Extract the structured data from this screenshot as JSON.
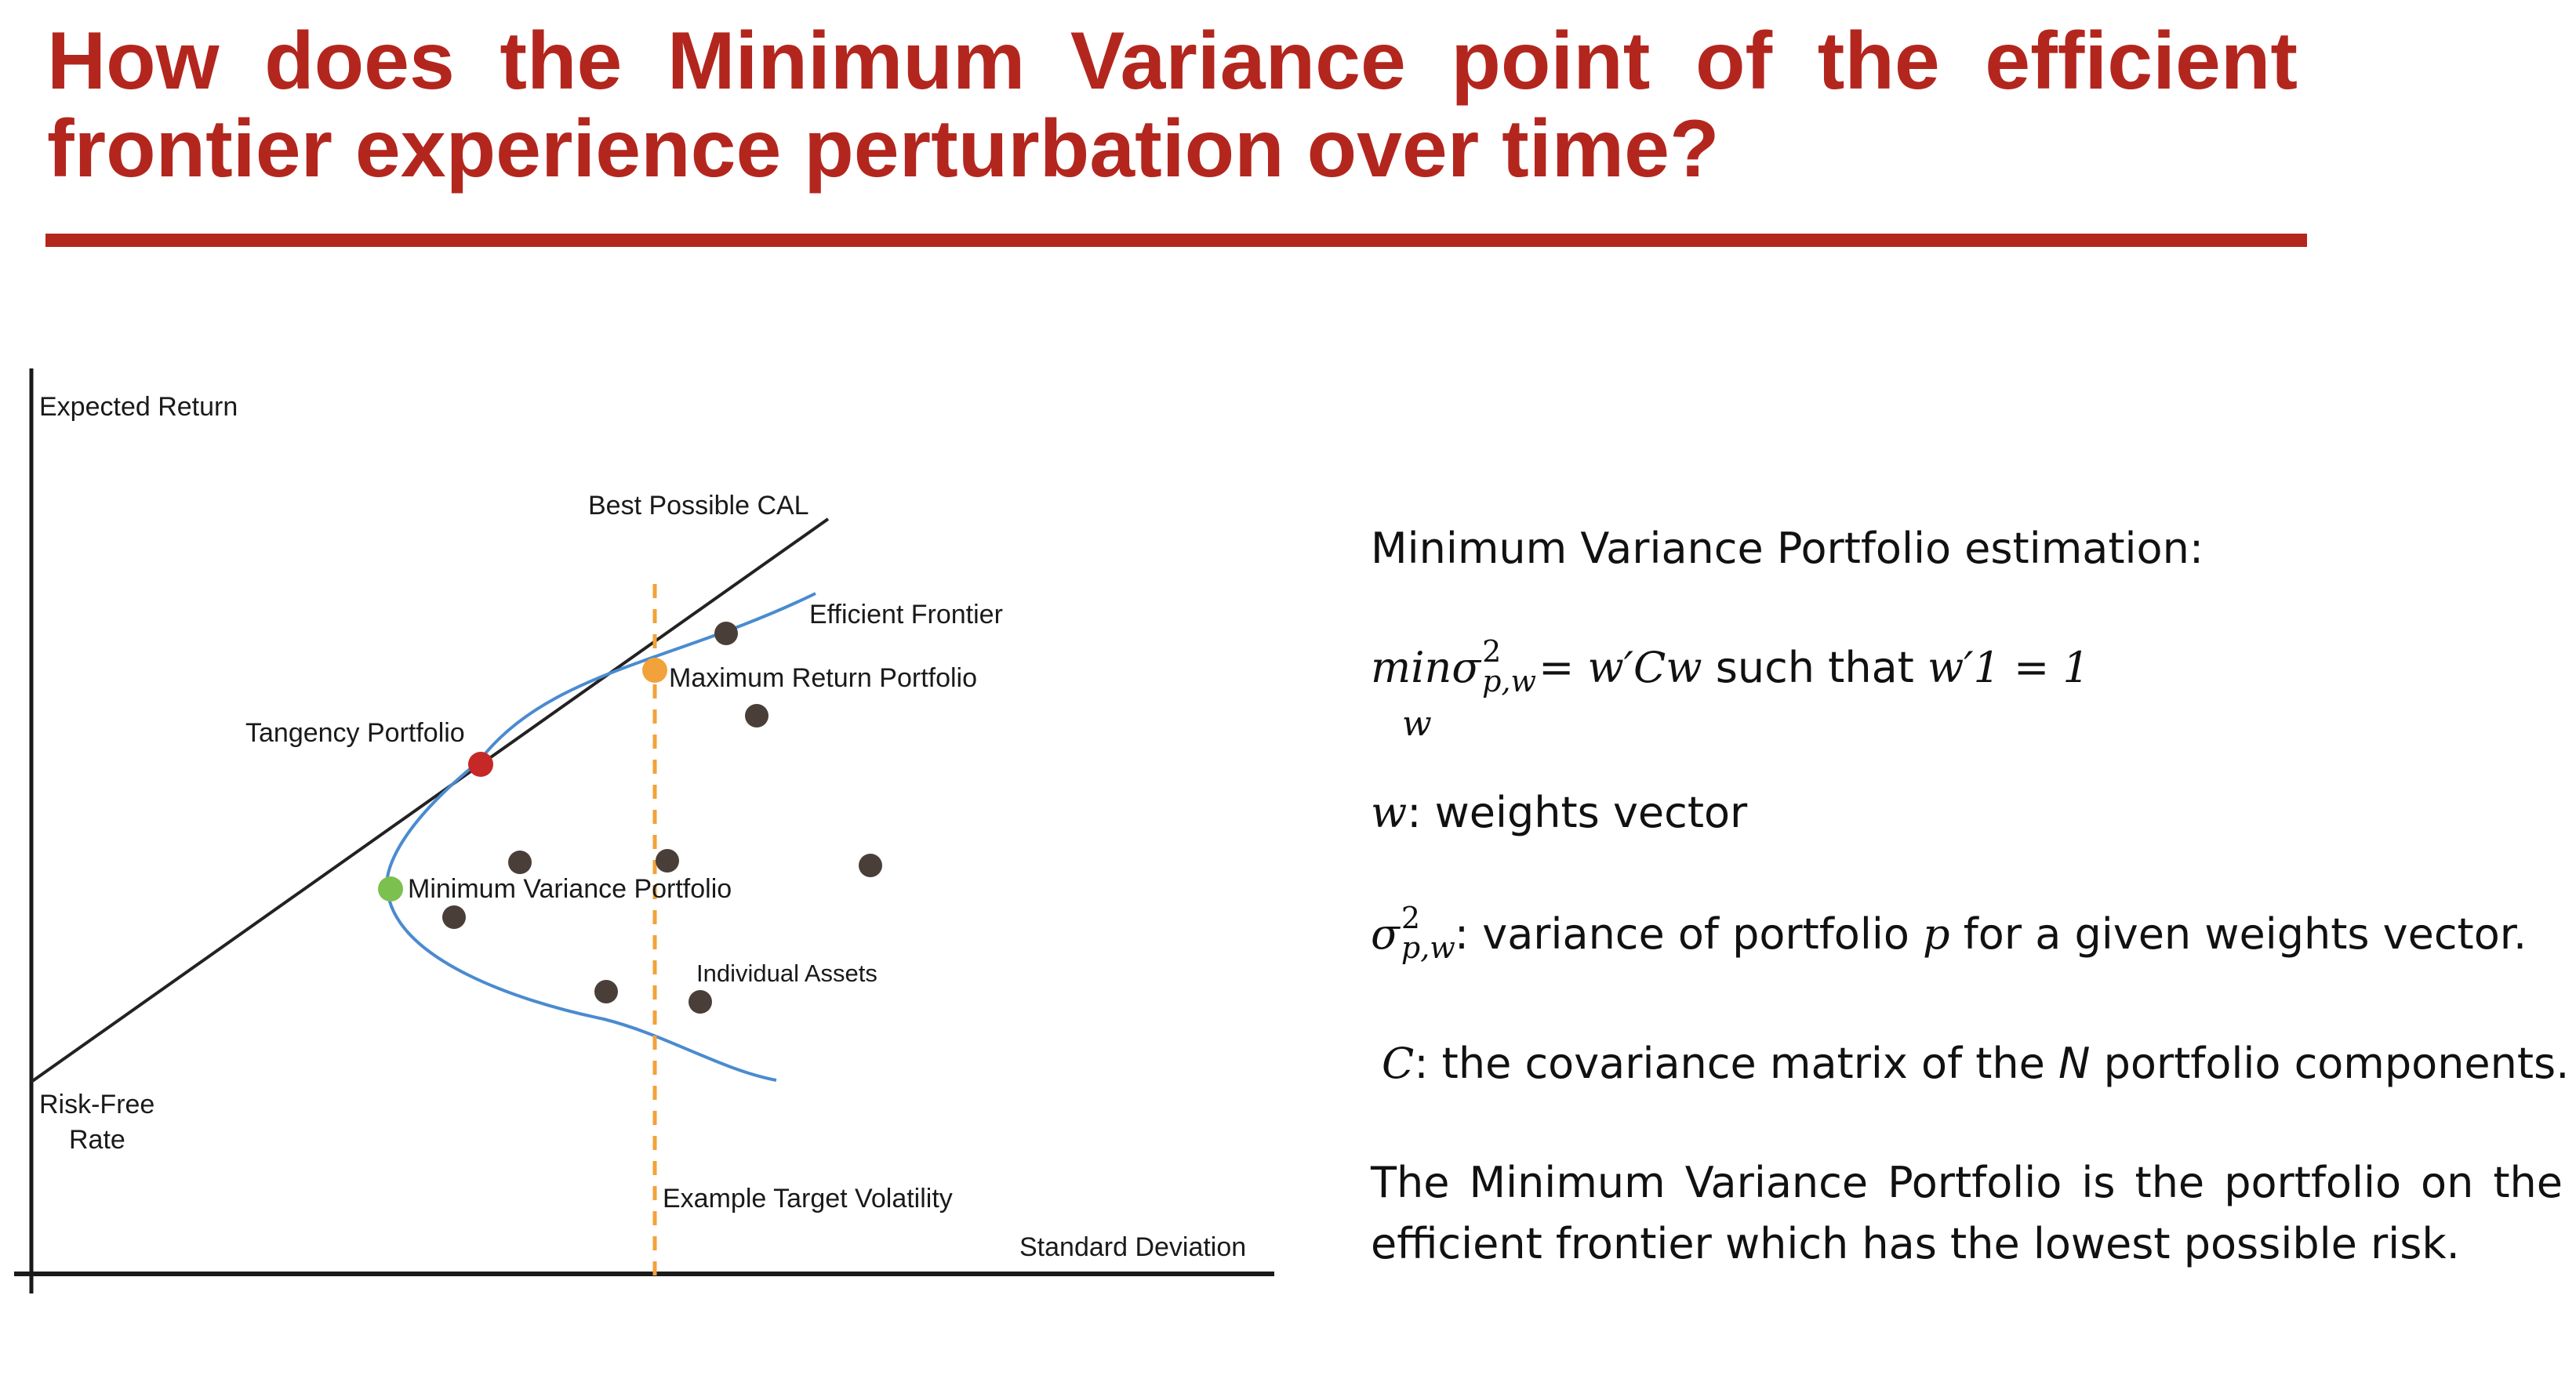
{
  "title": "How does the Minimum Variance point of the efficient frontier experience perturbation over time?",
  "diagram": {
    "y_axis_label": "Expected Return",
    "x_axis_label": "Standard Deviation",
    "risk_free_label_1": "Risk-Free",
    "risk_free_label_2": "Rate",
    "cal_label": "Best Possible CAL",
    "frontier_label": "Efficient Frontier",
    "max_return_label": "Maximum Return Portfolio",
    "tangency_label": "Tangency Portfolio",
    "min_variance_label": "Minimum Variance Portfolio",
    "assets_label": "Individual Assets",
    "target_vol_label": "Example Target Volatility",
    "colors": {
      "cal_line": "#222222",
      "frontier": "#4a8bd0",
      "target_line": "#f2a23a",
      "tangency": "#c62828",
      "min_variance": "#7cc04f",
      "max_return": "#f2a23a",
      "asset": "#4a3f38"
    }
  },
  "panel": {
    "heading": "Minimum Variance Portfolio estimation:",
    "formula_min": "min",
    "formula_sigma": "σ",
    "formula_sup": "2",
    "formula_sub": "p,w",
    "formula_under": "w",
    "formula_rhs": "= w′Cw",
    "formula_such": " such that ",
    "formula_constraint": "w′1 = 1",
    "w_symbol": "w",
    "w_desc": ": weights vector",
    "sigma_desc_1": ": variance of portfolio ",
    "sigma_p": "p",
    "sigma_desc_2": " for a given weights vector.",
    "c_symbol": "C",
    "c_desc_1": ":  the covariance matrix of the ",
    "c_n": "N",
    "c_desc_2": " portfolio components.",
    "conclusion": "The Minimum Variance Portfolio is the portfolio on the efficient frontier which has the lowest possible risk."
  }
}
